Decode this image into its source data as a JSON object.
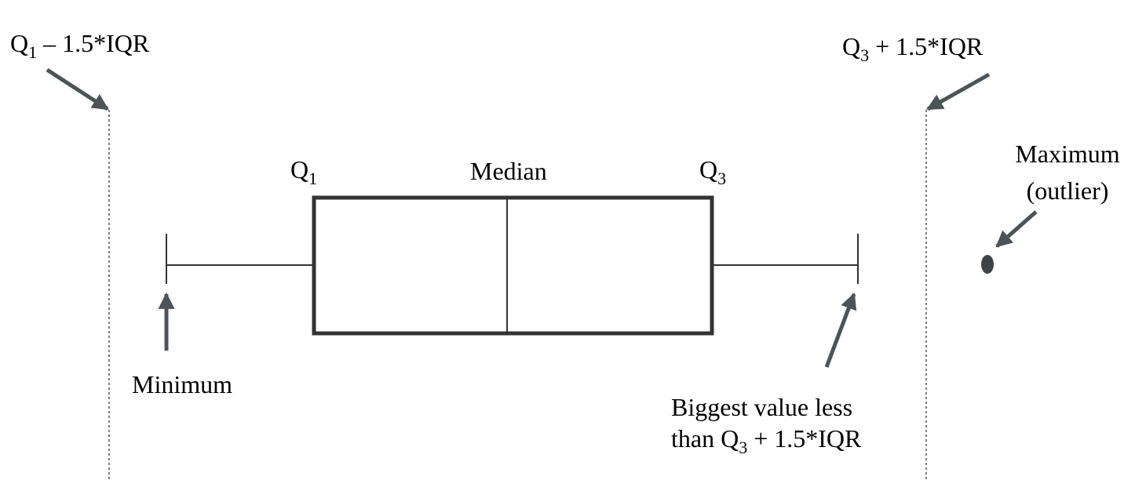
{
  "labels": {
    "lower_fence": {
      "base": "Q",
      "sub": "1",
      "rest": " – 1.5*IQR"
    },
    "upper_fence": {
      "base": "Q",
      "sub": "3",
      "rest": " + 1.5*IQR"
    },
    "q1": {
      "base": "Q",
      "sub": "1"
    },
    "median": "Median",
    "q3": {
      "base": "Q",
      "sub": "3"
    },
    "maximum": {
      "line1": "Maximum",
      "line2": "(outlier)"
    },
    "minimum": "Minimum",
    "biggest": {
      "line1": "Biggest value less",
      "line2_prefix": "than Q",
      "line2_sub": "3",
      "line2_rest": " + 1.5*IQR"
    }
  },
  "colors": {
    "box": "#333333",
    "arrow": "#4a5459",
    "fence": "#555555",
    "outlier": "#3d4449"
  }
}
